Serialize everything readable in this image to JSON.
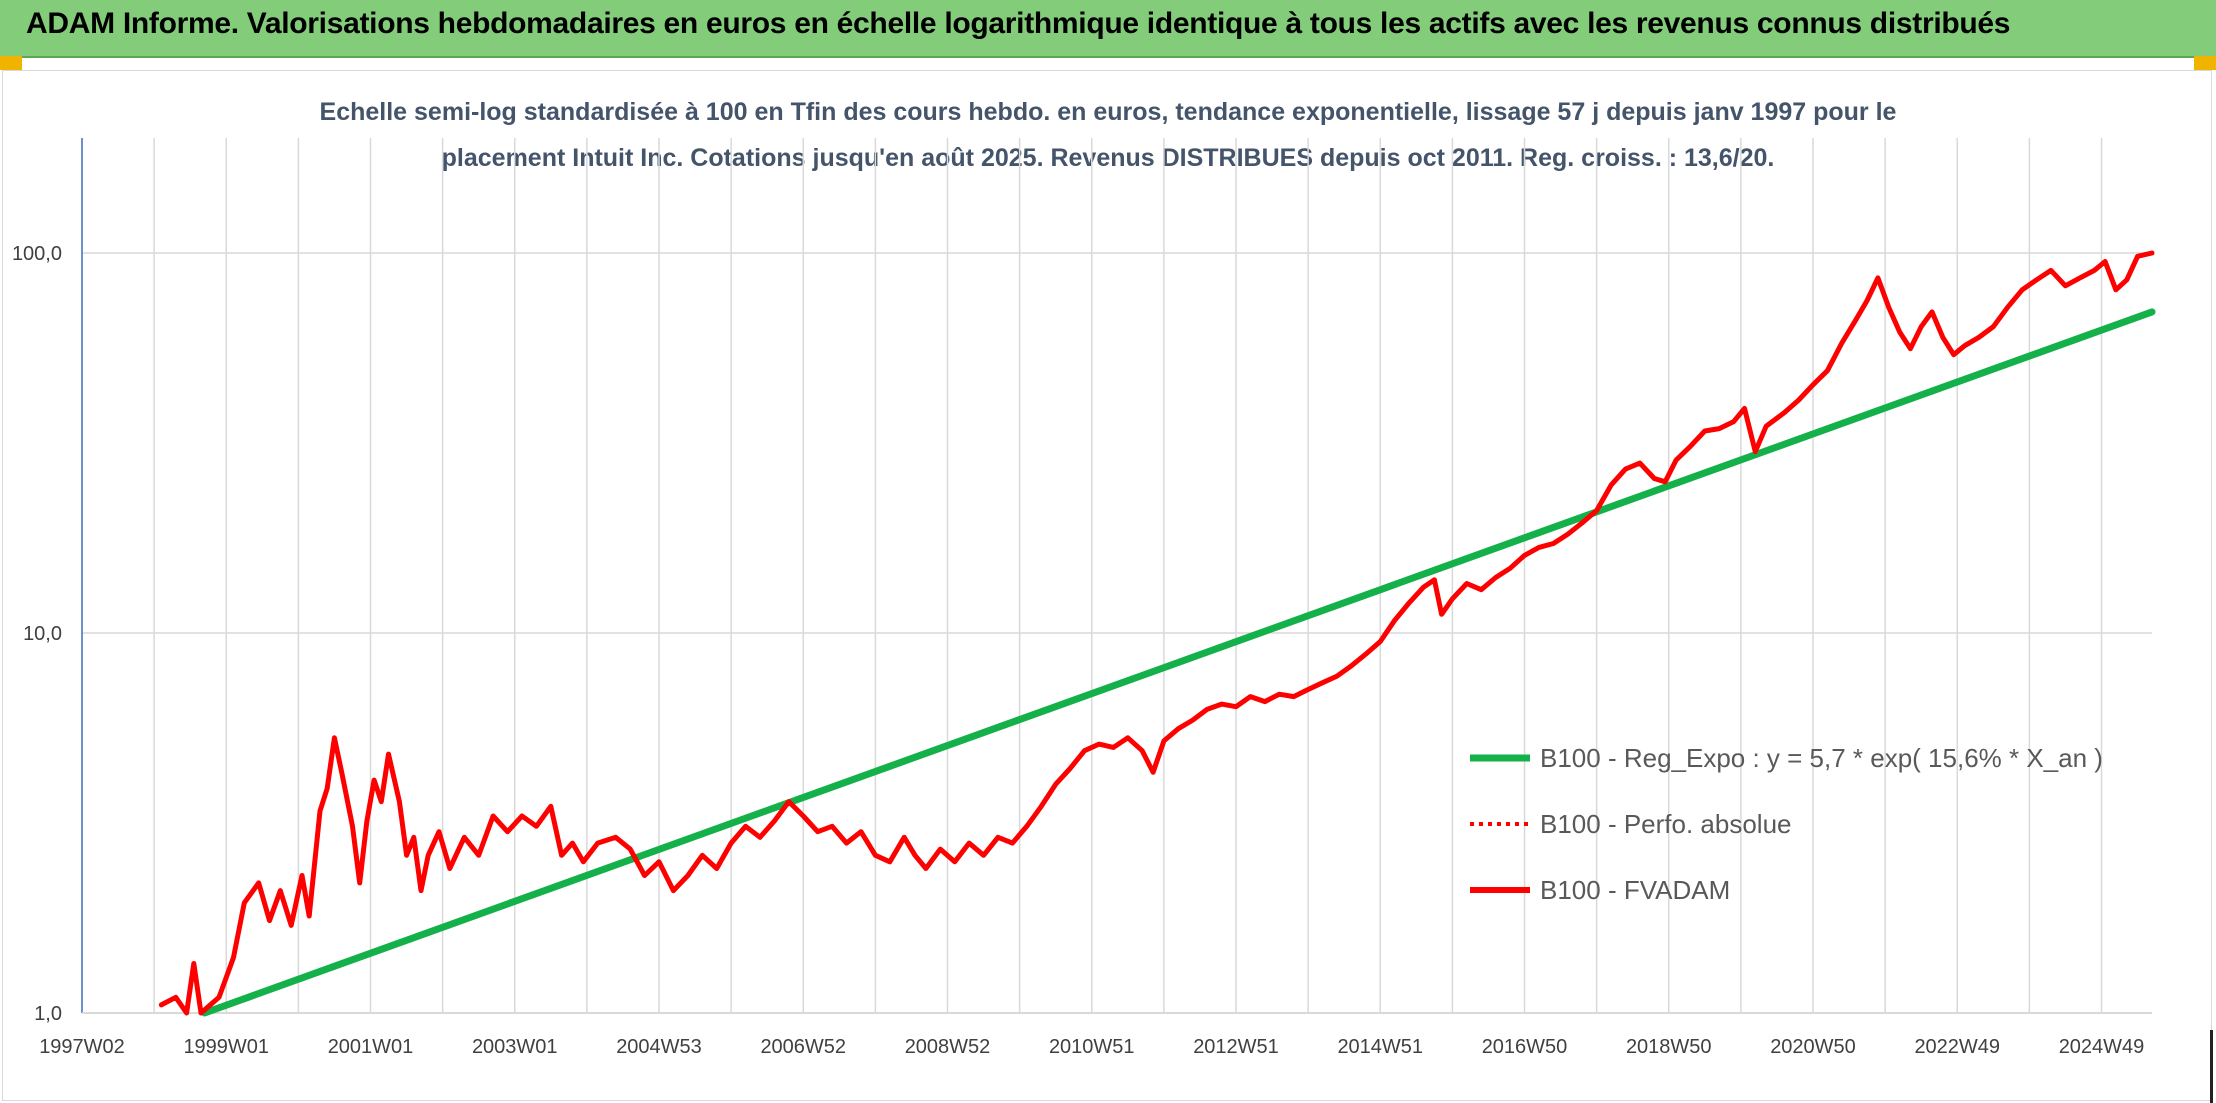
{
  "header": {
    "title": "ADAM Informe. Valorisations hebdomadaires en euros en échelle logarithmique identique à tous les actifs avec les revenus connus distribués"
  },
  "colors": {
    "header_bg": "#82cc7a",
    "trend": "#14b04a",
    "series": "#ff0000",
    "subtitle": "#44546a",
    "grid": "#d9d9d9"
  },
  "chart_data": {
    "type": "line",
    "title_line1": "Echelle semi-log standardisée à 100 en Tfin des cours hebdo. en euros, tendance exponentielle, lissage 57 j depuis janv 1997 pour le",
    "title_line2": "placement Intuit Inc. Cotations jusqu'en août 2025. Revenus DISTRIBUES depuis oct 2011. Reg. croiss. : 13,6/20.",
    "y_scale": "log",
    "ylim": [
      1,
      200
    ],
    "y_ticks": [
      "1,0",
      "10,0",
      "100,0"
    ],
    "y_tick_values": [
      1,
      10,
      100
    ],
    "x_ticks": [
      "1997W02",
      "1999W01",
      "2001W01",
      "2003W01",
      "2004W53",
      "2006W52",
      "2008W52",
      "2010W51",
      "2012W51",
      "2014W51",
      "2016W50",
      "2018W50",
      "2020W50",
      "2022W49",
      "2024W49"
    ],
    "x_tick_years": [
      1997,
      1999,
      2001,
      2003,
      2005,
      2007,
      2009,
      2011,
      2013,
      2015,
      2017,
      2019,
      2021,
      2023,
      2025
    ],
    "xlim": [
      1997,
      2025.7
    ],
    "legend_position": "right",
    "grid": true,
    "series": [
      {
        "name": "B100 - Reg_Expo : y = 5,7 * exp( 15,6% *  X_an )",
        "style": "solid",
        "color": "#14b04a",
        "points": [
          [
            1998.7,
            1.0
          ],
          [
            2025.7,
            70
          ]
        ]
      },
      {
        "name": "B100 - Perfo. absolue",
        "style": "dotted",
        "color": "#ff0000",
        "points": []
      },
      {
        "name": "B100 - FVADAM",
        "style": "solid",
        "color": "#ff0000",
        "points": [
          [
            1998.1,
            1.05
          ],
          [
            1998.3,
            1.1
          ],
          [
            1998.45,
            1.0
          ],
          [
            1998.55,
            1.35
          ],
          [
            1998.65,
            1.0
          ],
          [
            1998.9,
            1.1
          ],
          [
            1999.1,
            1.4
          ],
          [
            1999.25,
            1.95
          ],
          [
            1999.45,
            2.2
          ],
          [
            1999.6,
            1.75
          ],
          [
            1999.75,
            2.1
          ],
          [
            1999.9,
            1.7
          ],
          [
            2000.05,
            2.3
          ],
          [
            2000.15,
            1.8
          ],
          [
            2000.3,
            3.4
          ],
          [
            2000.4,
            3.9
          ],
          [
            2000.5,
            5.3
          ],
          [
            2000.6,
            4.3
          ],
          [
            2000.75,
            3.1
          ],
          [
            2000.85,
            2.2
          ],
          [
            2000.95,
            3.2
          ],
          [
            2001.05,
            4.1
          ],
          [
            2001.15,
            3.6
          ],
          [
            2001.25,
            4.8
          ],
          [
            2001.4,
            3.6
          ],
          [
            2001.5,
            2.6
          ],
          [
            2001.6,
            2.9
          ],
          [
            2001.7,
            2.1
          ],
          [
            2001.8,
            2.6
          ],
          [
            2001.95,
            3.0
          ],
          [
            2002.1,
            2.4
          ],
          [
            2002.3,
            2.9
          ],
          [
            2002.5,
            2.6
          ],
          [
            2002.7,
            3.3
          ],
          [
            2002.9,
            3.0
          ],
          [
            2003.1,
            3.3
          ],
          [
            2003.3,
            3.1
          ],
          [
            2003.5,
            3.5
          ],
          [
            2003.65,
            2.6
          ],
          [
            2003.8,
            2.8
          ],
          [
            2003.95,
            2.5
          ],
          [
            2004.15,
            2.8
          ],
          [
            2004.4,
            2.9
          ],
          [
            2004.6,
            2.7
          ],
          [
            2004.8,
            2.3
          ],
          [
            2005.0,
            2.5
          ],
          [
            2005.2,
            2.1
          ],
          [
            2005.4,
            2.3
          ],
          [
            2005.6,
            2.6
          ],
          [
            2005.8,
            2.4
          ],
          [
            2006.0,
            2.8
          ],
          [
            2006.2,
            3.1
          ],
          [
            2006.4,
            2.9
          ],
          [
            2006.6,
            3.2
          ],
          [
            2006.8,
            3.6
          ],
          [
            2007.0,
            3.3
          ],
          [
            2007.2,
            3.0
          ],
          [
            2007.4,
            3.1
          ],
          [
            2007.6,
            2.8
          ],
          [
            2007.8,
            3.0
          ],
          [
            2008.0,
            2.6
          ],
          [
            2008.2,
            2.5
          ],
          [
            2008.4,
            2.9
          ],
          [
            2008.55,
            2.6
          ],
          [
            2008.7,
            2.4
          ],
          [
            2008.9,
            2.7
          ],
          [
            2009.1,
            2.5
          ],
          [
            2009.3,
            2.8
          ],
          [
            2009.5,
            2.6
          ],
          [
            2009.7,
            2.9
          ],
          [
            2009.9,
            2.8
          ],
          [
            2010.1,
            3.1
          ],
          [
            2010.3,
            3.5
          ],
          [
            2010.5,
            4.0
          ],
          [
            2010.7,
            4.4
          ],
          [
            2010.9,
            4.9
          ],
          [
            2011.1,
            5.1
          ],
          [
            2011.3,
            5.0
          ],
          [
            2011.5,
            5.3
          ],
          [
            2011.7,
            4.9
          ],
          [
            2011.85,
            4.3
          ],
          [
            2012.0,
            5.2
          ],
          [
            2012.2,
            5.6
          ],
          [
            2012.4,
            5.9
          ],
          [
            2012.6,
            6.3
          ],
          [
            2012.8,
            6.5
          ],
          [
            2013.0,
            6.4
          ],
          [
            2013.2,
            6.8
          ],
          [
            2013.4,
            6.6
          ],
          [
            2013.6,
            6.9
          ],
          [
            2013.8,
            6.8
          ],
          [
            2014.0,
            7.1
          ],
          [
            2014.2,
            7.4
          ],
          [
            2014.4,
            7.7
          ],
          [
            2014.6,
            8.2
          ],
          [
            2014.8,
            8.8
          ],
          [
            2015.0,
            9.5
          ],
          [
            2015.2,
            10.8
          ],
          [
            2015.4,
            12.0
          ],
          [
            2015.6,
            13.2
          ],
          [
            2015.75,
            13.8
          ],
          [
            2015.85,
            11.2
          ],
          [
            2016.0,
            12.3
          ],
          [
            2016.2,
            13.5
          ],
          [
            2016.4,
            13.0
          ],
          [
            2016.6,
            14.0
          ],
          [
            2016.8,
            14.8
          ],
          [
            2017.0,
            16.0
          ],
          [
            2017.2,
            16.8
          ],
          [
            2017.4,
            17.2
          ],
          [
            2017.6,
            18.2
          ],
          [
            2017.8,
            19.5
          ],
          [
            2018.0,
            21.0
          ],
          [
            2018.2,
            24.5
          ],
          [
            2018.4,
            27.0
          ],
          [
            2018.6,
            28.0
          ],
          [
            2018.8,
            25.5
          ],
          [
            2018.95,
            25.0
          ],
          [
            2019.1,
            28.5
          ],
          [
            2019.3,
            31.0
          ],
          [
            2019.5,
            34.0
          ],
          [
            2019.7,
            34.5
          ],
          [
            2019.9,
            36.0
          ],
          [
            2020.05,
            39.0
          ],
          [
            2020.2,
            30.0
          ],
          [
            2020.35,
            35.0
          ],
          [
            2020.6,
            38.0
          ],
          [
            2020.8,
            41.0
          ],
          [
            2021.0,
            45.0
          ],
          [
            2021.2,
            49.0
          ],
          [
            2021.4,
            58.0
          ],
          [
            2021.6,
            67.0
          ],
          [
            2021.75,
            75.0
          ],
          [
            2021.9,
            86.0
          ],
          [
            2022.05,
            72.0
          ],
          [
            2022.2,
            62.0
          ],
          [
            2022.35,
            56.0
          ],
          [
            2022.5,
            64.0
          ],
          [
            2022.65,
            70.0
          ],
          [
            2022.8,
            60.0
          ],
          [
            2022.95,
            54.0
          ],
          [
            2023.1,
            57.0
          ],
          [
            2023.3,
            60.0
          ],
          [
            2023.5,
            64.0
          ],
          [
            2023.7,
            72.0
          ],
          [
            2023.9,
            80.0
          ],
          [
            2024.1,
            85.0
          ],
          [
            2024.3,
            90.0
          ],
          [
            2024.5,
            82.0
          ],
          [
            2024.7,
            86.0
          ],
          [
            2024.9,
            90.0
          ],
          [
            2025.05,
            95.0
          ],
          [
            2025.2,
            80.0
          ],
          [
            2025.35,
            85.0
          ],
          [
            2025.5,
            98.0
          ],
          [
            2025.7,
            100.0
          ]
        ]
      }
    ]
  }
}
